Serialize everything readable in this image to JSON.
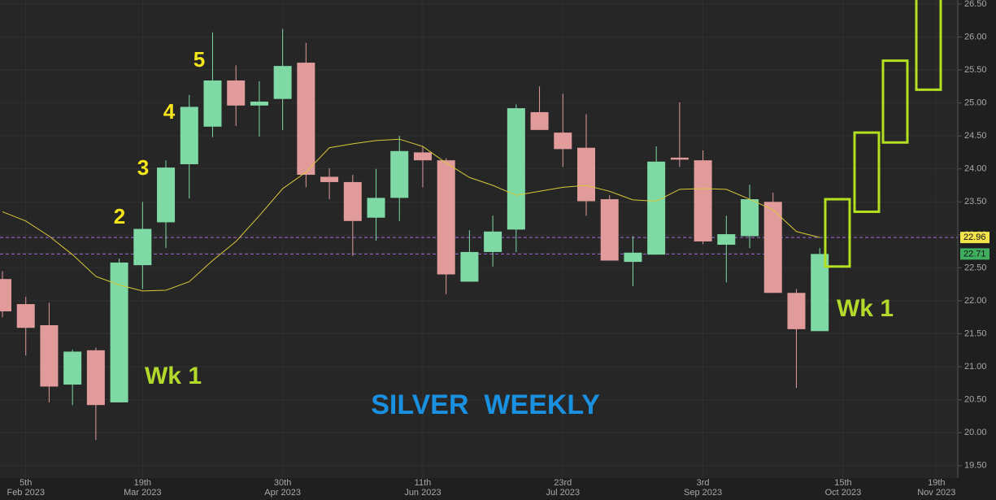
{
  "chart_data": {
    "type": "candlestick",
    "title": "SILVER  WEEKLY",
    "title_color": "#1a90e0",
    "categories": [
      null,
      "5th Feb 2023",
      null,
      null,
      null,
      null,
      "19th Mar 2023",
      null,
      null,
      null,
      null,
      null,
      "30th Apr 2023",
      null,
      null,
      null,
      null,
      null,
      "11th Jun 2023",
      null,
      null,
      null,
      null,
      null,
      "23rd Jul 2023",
      null,
      null,
      null,
      null,
      null,
      "3rd Sep 2023",
      null,
      null,
      null,
      null,
      null,
      "15th Oct 2023",
      null,
      null,
      null,
      "19th Nov 2023"
    ],
    "open": [
      22.33,
      21.95,
      21.63,
      20.73,
      21.25,
      20.46,
      22.54,
      23.19,
      24.07,
      24.64,
      25.34,
      24.96,
      25.06,
      25.61,
      23.88,
      23.8,
      23.26,
      23.56,
      24.25,
      24.13,
      22.29,
      22.74,
      23.08,
      24.86,
      24.55,
      24.32,
      23.54,
      22.59,
      22.7,
      24.17,
      24.13,
      22.85,
      22.98,
      23.5,
      22.12,
      21.54,
      null,
      null,
      null,
      null,
      null
    ],
    "high": [
      22.45,
      22.06,
      21.97,
      21.26,
      21.29,
      22.64,
      23.5,
      24.13,
      25.12,
      26.07,
      25.57,
      25.33,
      26.12,
      25.91,
      24.01,
      23.91,
      24.0,
      24.5,
      24.34,
      24.16,
      23.07,
      23.29,
      24.98,
      25.25,
      25.14,
      24.83,
      23.6,
      22.98,
      24.34,
      25.01,
      24.28,
      23.29,
      23.76,
      23.64,
      22.18,
      22.8,
      null,
      null,
      null,
      null,
      null
    ],
    "low": [
      21.75,
      21.17,
      20.46,
      20.42,
      19.89,
      20.46,
      22.18,
      22.8,
      23.55,
      24.48,
      24.65,
      24.49,
      24.59,
      23.72,
      23.54,
      22.68,
      22.91,
      23.21,
      23.72,
      22.1,
      22.29,
      22.52,
      22.74,
      24.59,
      24.03,
      23.29,
      22.61,
      22.22,
      22.7,
      24.03,
      22.86,
      22.28,
      22.8,
      22.12,
      20.68,
      21.54,
      null,
      null,
      null,
      null,
      null
    ],
    "close": [
      21.84,
      21.59,
      20.7,
      21.23,
      20.42,
      22.58,
      23.09,
      24.02,
      24.94,
      25.34,
      24.96,
      25.02,
      25.56,
      23.91,
      23.8,
      23.21,
      23.56,
      24.27,
      24.13,
      22.4,
      22.74,
      23.05,
      24.92,
      24.59,
      24.3,
      23.51,
      22.61,
      22.73,
      24.11,
      24.14,
      22.9,
      23.01,
      23.54,
      22.12,
      21.57,
      22.71,
      null,
      null,
      null,
      null,
      null
    ],
    "up_color": "#7fd9a4",
    "down_color": "#e19b9b",
    "moving_average": {
      "color": "#d9c83a",
      "values": [
        23.35,
        23.21,
        22.98,
        22.7,
        22.37,
        22.24,
        22.15,
        22.16,
        22.29,
        22.61,
        22.9,
        23.29,
        23.7,
        23.95,
        24.32,
        24.38,
        24.43,
        24.45,
        24.34,
        24.09,
        23.87,
        23.75,
        23.6,
        23.66,
        23.72,
        23.75,
        23.66,
        23.53,
        23.51,
        23.69,
        23.7,
        23.69,
        23.54,
        23.38,
        23.05,
        22.96,
        null,
        null,
        null,
        null,
        null
      ]
    },
    "price_tags": [
      {
        "value": 22.96,
        "color": "#f2e34a"
      },
      {
        "value": 22.71,
        "color": "#3fae5e"
      }
    ],
    "projection": {
      "color": "#b3e021",
      "low": [
        22.52,
        23.35,
        24.4,
        25.2
      ],
      "high": [
        23.54,
        24.55,
        25.64,
        26.58
      ]
    },
    "annotations": [
      {
        "text": "2",
        "color": "#f5e51b"
      },
      {
        "text": "3",
        "color": "#f5e51b"
      },
      {
        "text": "4",
        "color": "#f5e51b"
      },
      {
        "text": "5",
        "color": "#f5e51b"
      },
      {
        "text": "Wk 1",
        "color": "#b3d92b"
      },
      {
        "text": "Wk 1",
        "color": "#b3d92b"
      }
    ],
    "ylim": [
      19.35,
      26.56
    ],
    "yticks": [
      {
        "value": 19.5,
        "label": "19.50"
      },
      {
        "value": 20,
        "label": "20.00"
      },
      {
        "value": 20.5,
        "label": "20.50"
      },
      {
        "value": 21,
        "label": "21.00"
      },
      {
        "value": 21.5,
        "label": "21.50"
      },
      {
        "value": 22,
        "label": "22.00"
      },
      {
        "value": 22.5,
        "label": "22.50"
      },
      {
        "value": 23,
        "label": "23.00"
      },
      {
        "value": 23.5,
        "label": "23.50"
      },
      {
        "value": 24,
        "label": "24.00"
      },
      {
        "value": 24.5,
        "label": "24.50"
      },
      {
        "value": 25,
        "label": "25.00"
      },
      {
        "value": 25.5,
        "label": "25.50"
      },
      {
        "value": 26,
        "label": "26.00"
      },
      {
        "value": 26.5,
        "label": "26.50"
      }
    ],
    "grid": true
  }
}
